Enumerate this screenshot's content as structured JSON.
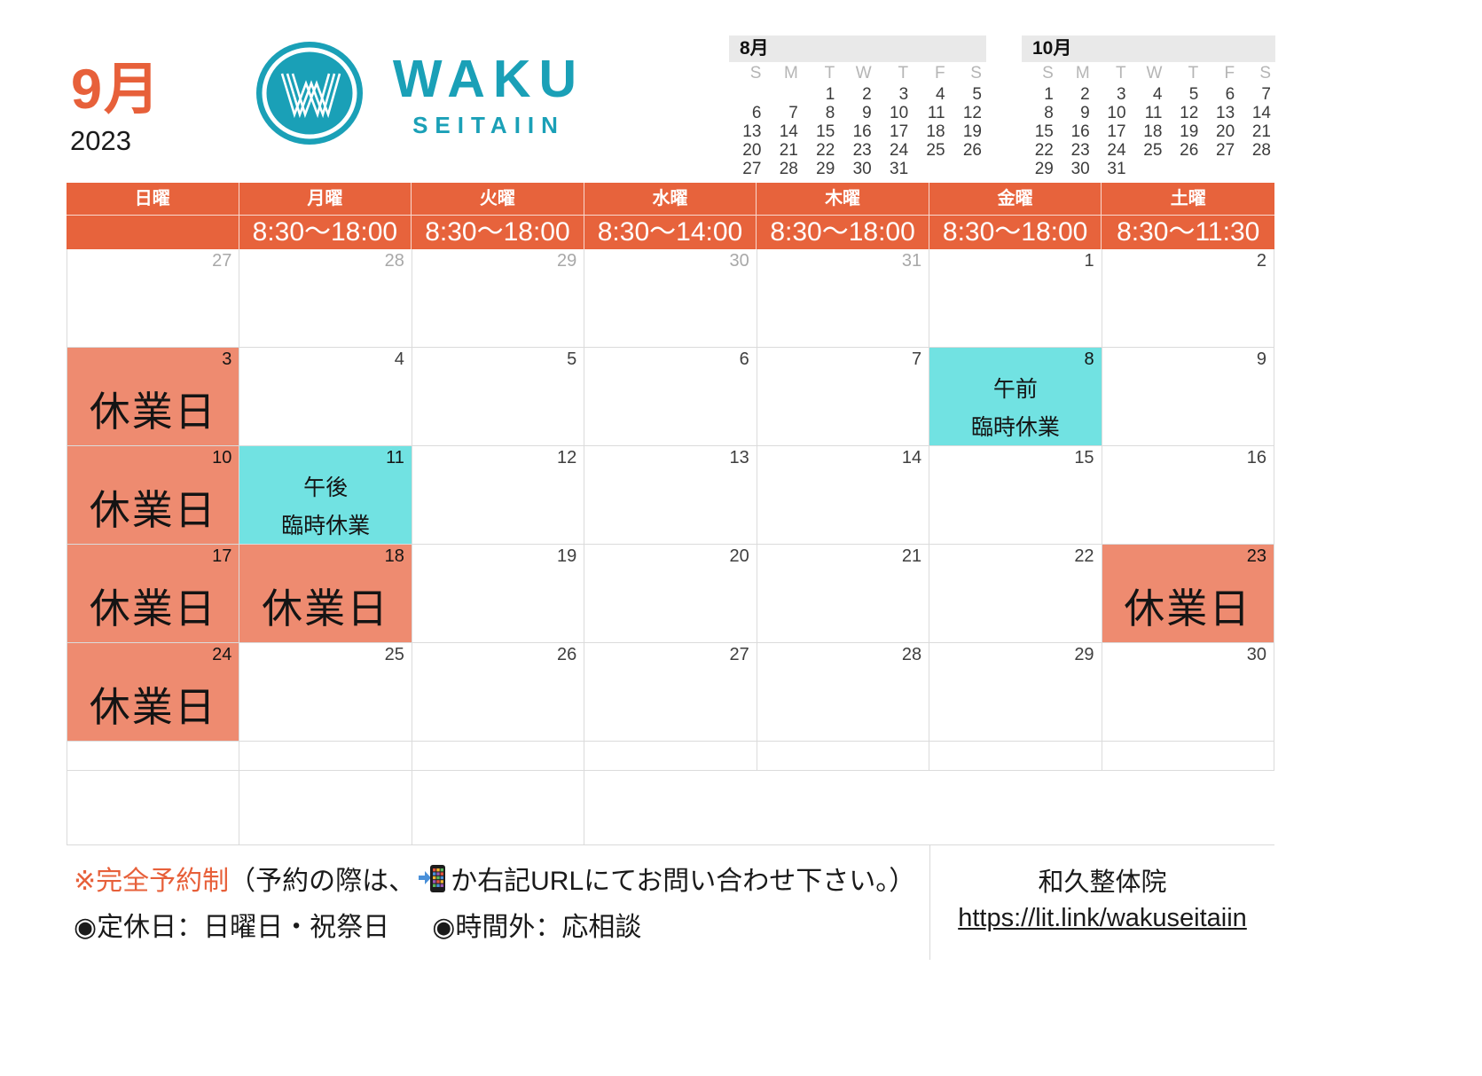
{
  "header": {
    "month_label": "9月",
    "year": "2023",
    "brand": "WAKU",
    "brand_sub": "SEITAIIN"
  },
  "colors": {
    "accent_orange": "#E7633C",
    "closed_highlight": "#EE8B70",
    "temp_closed_highlight": "#71E2E2",
    "brand_teal": "#1AA0B7"
  },
  "icons": {
    "phone": "📲",
    "logo": "waku-w-badge"
  },
  "mini_calendars": [
    {
      "title": "8月",
      "weekday_labels": [
        "S",
        "M",
        "T",
        "W",
        "T",
        "F",
        "S"
      ],
      "weeks": [
        [
          "",
          "",
          "1",
          "2",
          "3",
          "4",
          "5"
        ],
        [
          "6",
          "7",
          "8",
          "9",
          "10",
          "11",
          "12"
        ],
        [
          "13",
          "14",
          "15",
          "16",
          "17",
          "18",
          "19"
        ],
        [
          "20",
          "21",
          "22",
          "23",
          "24",
          "25",
          "26"
        ],
        [
          "27",
          "28",
          "29",
          "30",
          "31",
          "",
          ""
        ]
      ]
    },
    {
      "title": "10月",
      "weekday_labels": [
        "S",
        "M",
        "T",
        "W",
        "T",
        "F",
        "S"
      ],
      "weeks": [
        [
          "1",
          "2",
          "3",
          "4",
          "5",
          "6",
          "7"
        ],
        [
          "8",
          "9",
          "10",
          "11",
          "12",
          "13",
          "14"
        ],
        [
          "15",
          "16",
          "17",
          "18",
          "19",
          "20",
          "21"
        ],
        [
          "22",
          "23",
          "24",
          "25",
          "26",
          "27",
          "28"
        ],
        [
          "29",
          "30",
          "31",
          "",
          "",
          "",
          ""
        ]
      ]
    }
  ],
  "main_calendar": {
    "day_headers": [
      "日曜",
      "月曜",
      "火曜",
      "水曜",
      "木曜",
      "金曜",
      "土曜"
    ],
    "hours": [
      "",
      "8:30〜18:00",
      "8:30〜18:00",
      "8:30〜14:00",
      "8:30〜18:00",
      "8:30〜18:00",
      "8:30〜11:30"
    ],
    "closed_label": "休業日",
    "weeks": [
      [
        {
          "date": "27",
          "muted": true
        },
        {
          "date": "28",
          "muted": true
        },
        {
          "date": "29",
          "muted": true
        },
        {
          "date": "30",
          "muted": true
        },
        {
          "date": "31",
          "muted": true
        },
        {
          "date": "1"
        },
        {
          "date": "2"
        }
      ],
      [
        {
          "date": "3",
          "status": "closed",
          "label": "休業日"
        },
        {
          "date": "4"
        },
        {
          "date": "5"
        },
        {
          "date": "6"
        },
        {
          "date": "7"
        },
        {
          "date": "8",
          "status": "temp",
          "lines": [
            "午前",
            "臨時休業"
          ]
        },
        {
          "date": "9"
        }
      ],
      [
        {
          "date": "10",
          "status": "closed",
          "label": "休業日"
        },
        {
          "date": "11",
          "status": "temp",
          "lines": [
            "午後",
            "臨時休業"
          ]
        },
        {
          "date": "12"
        },
        {
          "date": "13"
        },
        {
          "date": "14"
        },
        {
          "date": "15"
        },
        {
          "date": "16"
        }
      ],
      [
        {
          "date": "17",
          "status": "closed",
          "label": "休業日"
        },
        {
          "date": "18",
          "status": "closed",
          "label": "休業日"
        },
        {
          "date": "19"
        },
        {
          "date": "20"
        },
        {
          "date": "21"
        },
        {
          "date": "22"
        },
        {
          "date": "23",
          "status": "closed",
          "label": "休業日"
        }
      ],
      [
        {
          "date": "24",
          "status": "closed",
          "label": "休業日"
        },
        {
          "date": "25"
        },
        {
          "date": "26"
        },
        {
          "date": "27"
        },
        {
          "date": "28"
        },
        {
          "date": "29"
        },
        {
          "date": "30"
        }
      ]
    ]
  },
  "notes": {
    "reservation_label": "※完全予約制",
    "reservation_before_icon": "（予約の際は、",
    "reservation_after_icon": "か右記URLにてお問い合わせ下さい。）",
    "closed_days": "◉定休日：日曜日・祝祭日",
    "after_hours": "◉時間外：応相談"
  },
  "footer": {
    "clinic_name": "和久整体院",
    "url": "https://lit.link/wakuseitaiin"
  }
}
